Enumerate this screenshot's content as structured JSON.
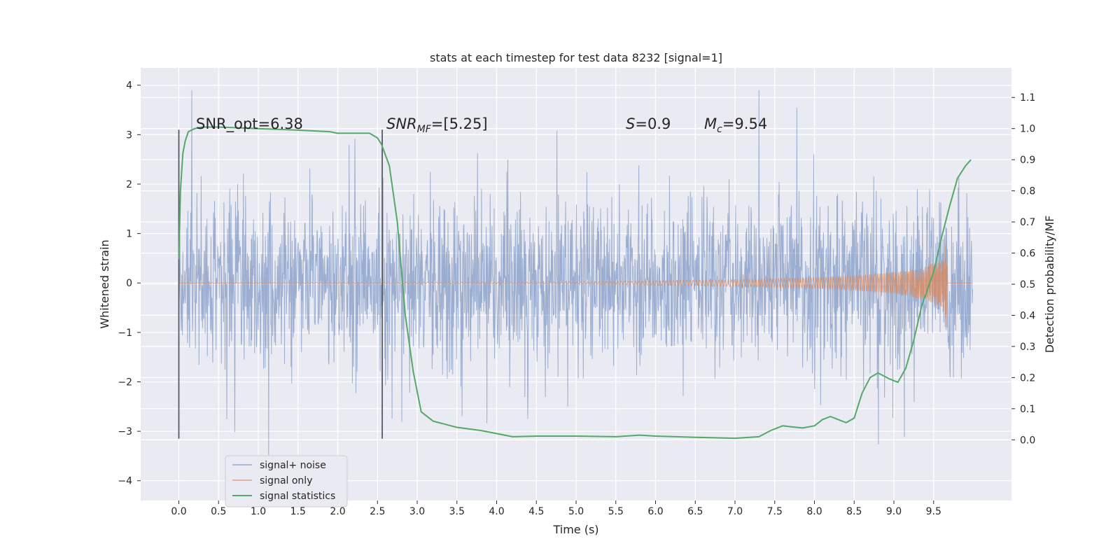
{
  "chart_data": {
    "type": "line",
    "title": "stats at each timestep for test data 8232 [signal=1]",
    "xlabel": "Time (s)",
    "ylabel_left": "Whitened strain",
    "ylabel_right": "Detection probability/MF",
    "xlim": [
      -0.48,
      10.48
    ],
    "ylim_left": [
      -4.4,
      4.35
    ],
    "ylim_right": [
      -0.195,
      1.195
    ],
    "x_ticks": [
      "0.0",
      "0.5",
      "1.0",
      "1.5",
      "2.0",
      "2.5",
      "3.0",
      "3.5",
      "4.0",
      "4.5",
      "5.0",
      "5.5",
      "6.0",
      "6.5",
      "7.0",
      "7.5",
      "8.0",
      "8.5",
      "9.0",
      "9.5"
    ],
    "y_ticks_left": [
      "4",
      "3",
      "2",
      "1",
      "0",
      "−1",
      "−2",
      "−3",
      "−4"
    ],
    "y_ticks_right": [
      "1.1",
      "1.0",
      "0.9",
      "0.8",
      "0.7",
      "0.6",
      "0.5",
      "0.4",
      "0.3",
      "0.2",
      "0.1",
      "0.0"
    ],
    "grid": true,
    "legend_position": "lower-left",
    "annotations": {
      "snr_opt": "SNR_opt=6.38",
      "snr_mf_prefix": "SNR",
      "snr_mf_sub": "MF",
      "snr_mf_value": "=[5.25]",
      "s_symbol": "S",
      "s_value": "=0.9",
      "mc_symbol": "M",
      "mc_sub": "c",
      "mc_value": "=9.54"
    },
    "vertical_markers": [
      0.0,
      2.56
    ],
    "series": [
      {
        "name": "signal+ noise",
        "color": "#4c72b0",
        "axis": "left",
        "x_range": [
          0.0,
          9.99
        ],
        "envelope": {
          "typical": 1.3,
          "peak": 3.9
        }
      },
      {
        "name": "signal only",
        "color": "#dd8452",
        "axis": "left",
        "x_range": [
          0.0,
          9.67
        ],
        "envelope_points": [
          [
            0.0,
            0.005
          ],
          [
            5.0,
            0.02
          ],
          [
            7.0,
            0.07
          ],
          [
            8.0,
            0.11
          ],
          [
            8.5,
            0.15
          ],
          [
            9.0,
            0.22
          ],
          [
            9.4,
            0.33
          ],
          [
            9.6,
            0.5
          ],
          [
            9.67,
            0.9
          ]
        ]
      },
      {
        "name": "signal statistics",
        "color": "#55a868",
        "axis": "right",
        "x": [
          0.0,
          0.02,
          0.05,
          0.08,
          0.12,
          0.2,
          0.3,
          0.5,
          1.0,
          1.5,
          1.9,
          2.0,
          2.2,
          2.4,
          2.5,
          2.55,
          2.65,
          2.75,
          2.85,
          2.95,
          3.05,
          3.2,
          3.5,
          3.8,
          4.0,
          4.2,
          4.5,
          5.0,
          5.5,
          5.8,
          6.0,
          6.5,
          7.0,
          7.3,
          7.45,
          7.6,
          7.7,
          7.85,
          8.0,
          8.1,
          8.2,
          8.3,
          8.4,
          8.5,
          8.6,
          8.7,
          8.8,
          8.95,
          9.05,
          9.15,
          9.25,
          9.35,
          9.5,
          9.6,
          9.7,
          9.8,
          9.9,
          9.97
        ],
        "y": [
          0.58,
          0.8,
          0.92,
          0.96,
          0.99,
          1.0,
          1.005,
          1.005,
          1.0,
          0.995,
          0.99,
          0.985,
          0.985,
          0.985,
          0.97,
          0.95,
          0.88,
          0.7,
          0.4,
          0.22,
          0.09,
          0.06,
          0.04,
          0.03,
          0.02,
          0.01,
          0.012,
          0.012,
          0.01,
          0.015,
          0.012,
          0.008,
          0.005,
          0.01,
          0.03,
          0.045,
          0.042,
          0.038,
          0.045,
          0.065,
          0.075,
          0.065,
          0.055,
          0.07,
          0.15,
          0.2,
          0.215,
          0.195,
          0.185,
          0.23,
          0.32,
          0.43,
          0.54,
          0.65,
          0.75,
          0.84,
          0.88,
          0.9
        ]
      }
    ],
    "legend": {
      "items": [
        {
          "label": "signal+ noise",
          "color": "#4c72b0"
        },
        {
          "label": "signal only",
          "color": "#dd8452"
        },
        {
          "label": "signal statistics",
          "color": "#55a868"
        }
      ]
    }
  }
}
